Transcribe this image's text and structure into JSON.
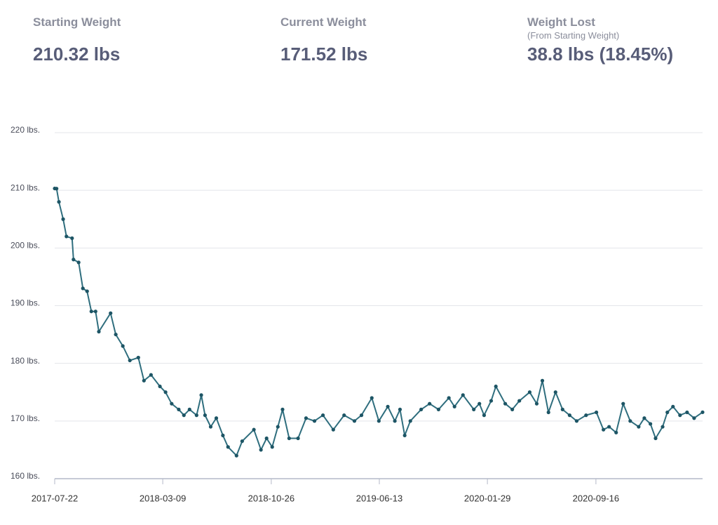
{
  "stats": [
    {
      "label": "Starting Weight",
      "value": "210.32 lbs"
    },
    {
      "label": "Current Weight",
      "value": "171.52 lbs"
    },
    {
      "label": "Weight Lost",
      "sublabel": "(From Starting Weight)",
      "value": "38.8 lbs (18.45%)"
    }
  ],
  "chart_data": {
    "type": "line",
    "color": "#2f6e7e",
    "grid": true,
    "x": [
      "2017-07-22",
      "2017-07-26",
      "2017-07-31",
      "2017-08-09",
      "2017-08-16",
      "2017-08-28",
      "2017-08-31",
      "2017-09-11",
      "2017-09-20",
      "2017-09-29",
      "2017-10-08",
      "2017-10-17",
      "2017-10-24",
      "2017-11-18",
      "2017-11-29",
      "2017-12-14",
      "2017-12-29",
      "2018-01-16",
      "2018-01-28",
      "2018-02-12",
      "2018-03-03",
      "2018-03-15",
      "2018-03-28",
      "2018-04-12",
      "2018-04-23",
      "2018-05-05",
      "2018-05-20",
      "2018-05-30",
      "2018-06-07",
      "2018-06-19",
      "2018-07-01",
      "2018-07-15",
      "2018-07-26",
      "2018-08-13",
      "2018-08-25",
      "2018-09-19",
      "2018-10-04",
      "2018-10-16",
      "2018-10-28",
      "2018-11-09",
      "2018-11-19",
      "2018-12-03",
      "2018-12-22",
      "2019-01-08",
      "2019-01-26",
      "2019-02-13",
      "2019-03-07",
      "2019-03-30",
      "2019-04-21",
      "2019-05-06",
      "2019-05-28",
      "2019-06-12",
      "2019-07-01",
      "2019-07-16",
      "2019-07-27",
      "2019-08-06",
      "2019-08-18",
      "2019-09-10",
      "2019-09-28",
      "2019-10-17",
      "2019-11-08",
      "2019-11-20",
      "2019-12-08",
      "2019-12-31",
      "2020-01-12",
      "2020-01-22",
      "2020-02-06",
      "2020-02-16",
      "2020-03-07",
      "2020-03-22",
      "2020-04-06",
      "2020-04-28",
      "2020-05-13",
      "2020-05-25",
      "2020-06-07",
      "2020-06-22",
      "2020-07-07",
      "2020-07-22",
      "2020-08-06",
      "2020-08-26",
      "2020-09-17",
      "2020-10-02",
      "2020-10-14",
      "2020-10-29",
      "2020-11-13",
      "2020-11-28",
      "2020-12-16",
      "2020-12-28",
      "2021-01-10",
      "2021-01-21",
      "2021-02-05",
      "2021-02-15",
      "2021-02-27",
      "2021-03-14",
      "2021-03-29",
      "2021-04-13",
      "2021-05-01"
    ],
    "values": [
      210.32,
      210.3,
      208,
      205,
      202,
      201.7,
      198,
      197.5,
      193,
      192.5,
      189,
      189,
      185.5,
      188.7,
      185,
      183,
      180.5,
      181,
      177,
      178,
      176,
      175,
      173,
      172,
      171,
      172,
      171,
      174.5,
      171,
      169,
      170.5,
      167.5,
      165.5,
      164,
      166.5,
      168.5,
      165,
      167,
      165.5,
      169,
      172,
      167,
      167,
      170.5,
      170,
      171,
      168.5,
      171,
      170,
      171,
      174,
      170,
      172.5,
      170,
      172,
      167.5,
      170,
      172,
      173,
      172,
      174,
      172.5,
      174.5,
      172,
      173,
      171,
      173.5,
      176,
      173,
      172,
      173.5,
      175,
      173,
      177,
      171.5,
      175,
      172,
      171,
      170,
      171,
      171.5,
      168.5,
      169,
      168,
      173,
      170,
      169,
      170.5,
      169.5,
      167,
      169,
      171.5,
      172.5,
      171,
      171.5,
      170.5,
      171.52
    ],
    "xlim": [
      "2017-07-22",
      "2021-05-01"
    ],
    "xticks": [
      "2017-07-22",
      "2018-03-09",
      "2018-10-26",
      "2019-06-13",
      "2020-01-29",
      "2020-09-16"
    ],
    "ylim": [
      160,
      220
    ],
    "yticks": [
      {
        "value": 160,
        "label": "160 lbs."
      },
      {
        "value": 170,
        "label": "170 lbs."
      },
      {
        "value": 180,
        "label": "180 lbs."
      },
      {
        "value": 190,
        "label": "190 lbs."
      },
      {
        "value": 200,
        "label": "200 lbs."
      },
      {
        "value": 210,
        "label": "210 lbs."
      },
      {
        "value": 220,
        "label": "220 lbs."
      }
    ]
  }
}
